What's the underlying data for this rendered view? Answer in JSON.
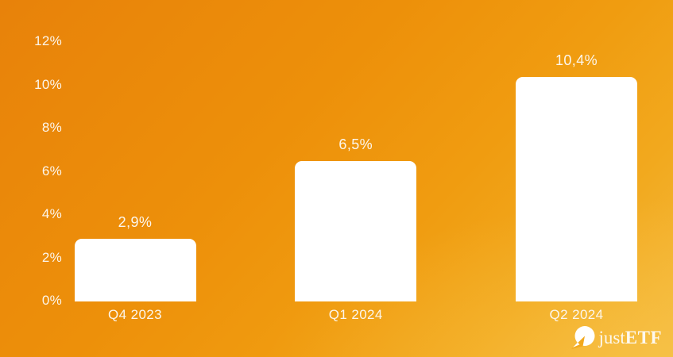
{
  "chart_data": {
    "type": "bar",
    "title": "",
    "xlabel": "",
    "ylabel": "",
    "categories": [
      "Q4 2023",
      "Q1 2024",
      "Q2 2024"
    ],
    "values": [
      2.9,
      6.5,
      10.4
    ],
    "value_labels": [
      "2,9%",
      "6,5%",
      "10,4%"
    ],
    "yticks": [
      0,
      2,
      4,
      6,
      8,
      10,
      12
    ],
    "ytick_labels": [
      "0%",
      "2%",
      "4%",
      "6%",
      "8%",
      "10%",
      "12%"
    ],
    "ylim": [
      0,
      12
    ],
    "grid": false,
    "legend_position": "none",
    "bar_color": "#ffffff",
    "label_color": "#fcf6ec"
  },
  "branding": {
    "logo_text_just": "just",
    "logo_text_etf": "ETF",
    "logo_icon": "justetf-compass-icon"
  },
  "colors": {
    "background_top_left": "#e8820a",
    "background_center": "#f09d0e",
    "background_bottom_right": "#f2b42a",
    "bar": "#ffffff",
    "text": "#fcf6ec"
  }
}
